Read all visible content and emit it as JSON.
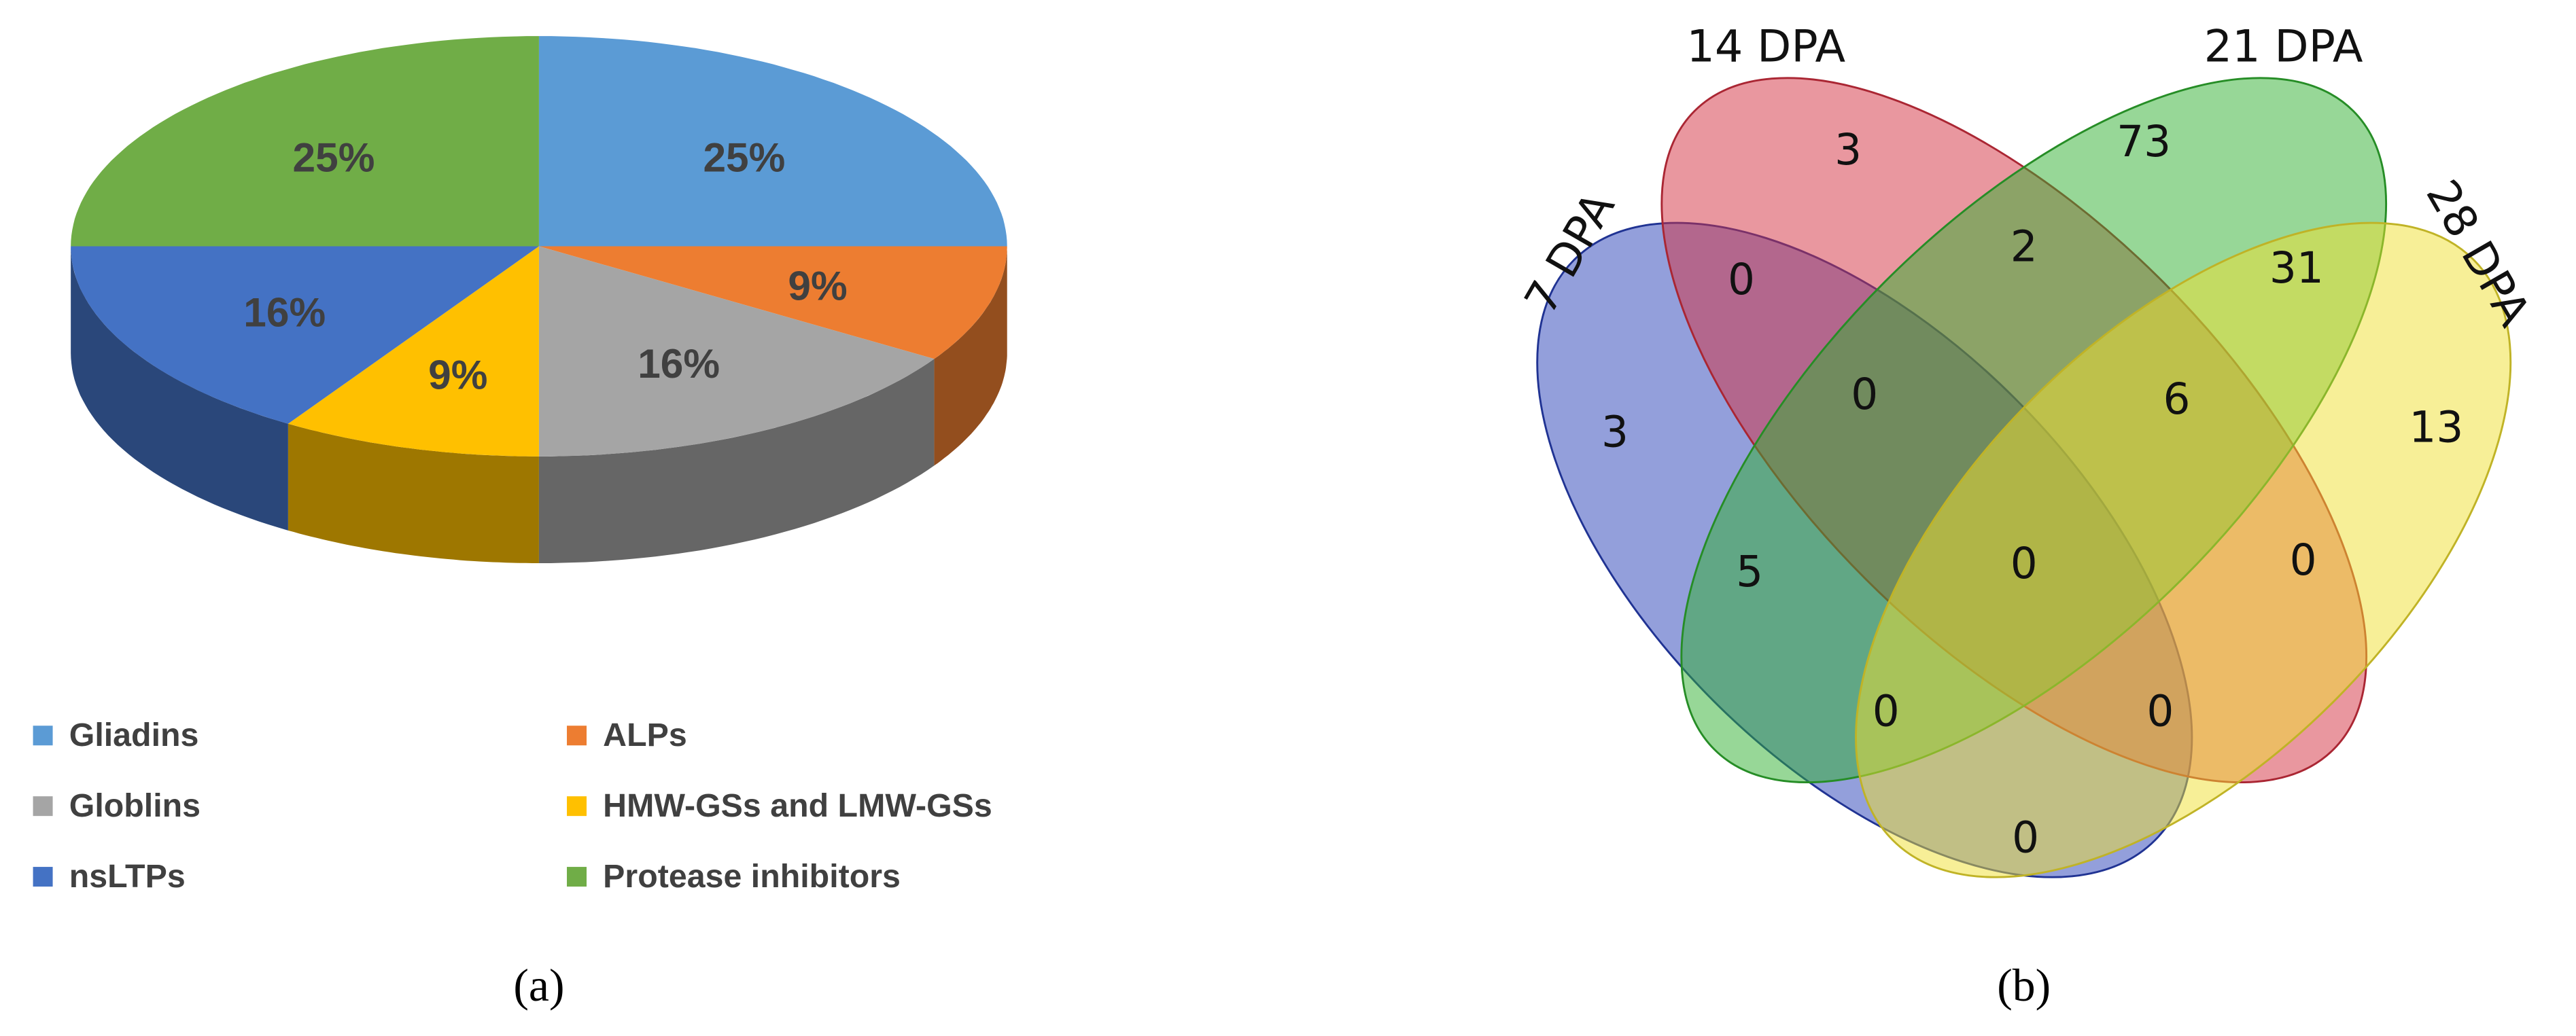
{
  "chart_data": [
    {
      "type": "pie",
      "categories": [
        "Gliadins",
        "ALPs",
        "Globlins",
        "HMW-GSs and LMW-GSs",
        "nsLTPs",
        "Protease inhibitors"
      ],
      "values": [
        25,
        9,
        16,
        9,
        16,
        25
      ],
      "value_labels": [
        "25%",
        "9%",
        "16%",
        "9%",
        "16%",
        "25%"
      ],
      "colors": [
        "#5b9bd5",
        "#ed7d31",
        "#a5a5a5",
        "#ffc000",
        "#4472c4",
        "#70ad47"
      ],
      "caption": "(a)"
    },
    {
      "type": "venn",
      "sets": [
        "7 DPA",
        "14 DPA",
        "21 DPA",
        "28 DPA"
      ],
      "colors": [
        "#2840b8",
        "#d43040",
        "#30b030",
        "#f0e030"
      ],
      "values": [
        3,
        3,
        73,
        13,
        0,
        2,
        31,
        0,
        6,
        5,
        0,
        0,
        0,
        0,
        0
      ],
      "caption": "(b)"
    }
  ]
}
